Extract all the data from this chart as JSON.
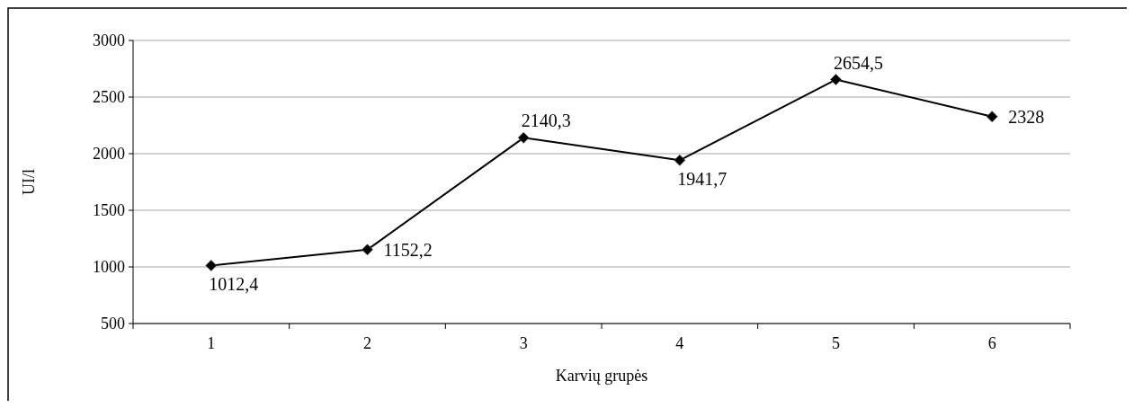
{
  "chart_data": {
    "type": "line",
    "xlabel": "Karvių grupės",
    "ylabel": "UI/l",
    "categories": [
      "1",
      "2",
      "3",
      "4",
      "5",
      "6"
    ],
    "series": [
      {
        "color": "#000000",
        "values": [
          1012.4,
          1152.2,
          2140.3,
          1941.7,
          2654.5,
          2328
        ],
        "value_labels": [
          "1012,4",
          "1152,2",
          "2140,3",
          "1941,7",
          "2654,5",
          "2328"
        ]
      }
    ],
    "ylim": [
      500,
      3000
    ],
    "yticks": [
      500,
      1000,
      1500,
      2000,
      2500,
      3000
    ],
    "grid": "y",
    "marker": "diamond",
    "line_style": "solid"
  }
}
